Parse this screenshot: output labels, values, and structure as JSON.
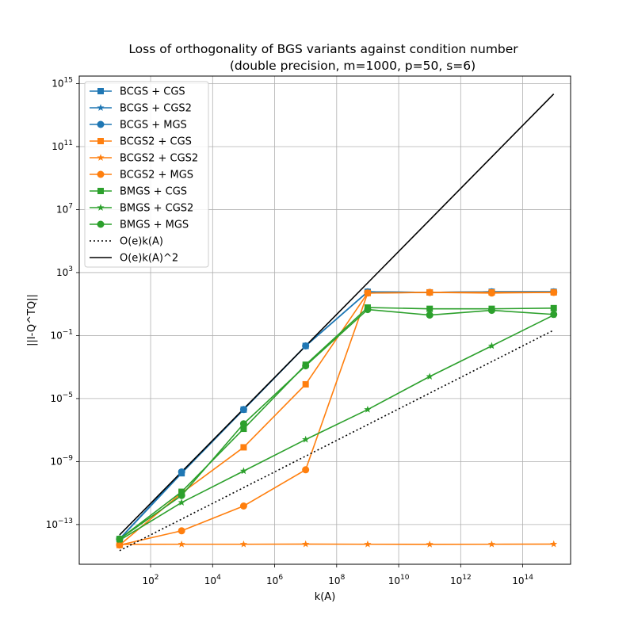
{
  "chart_data": {
    "type": "line",
    "title_line1": "Loss of orthogonality of BGS variants against condition number",
    "title_line2": "(double precision, m=1000, p=50, s=6)",
    "xlabel": "k(A)",
    "ylabel": "||I-Q^TQ||",
    "xscale": "log",
    "yscale": "log",
    "xlim": [
      0.5,
      3500000000000000.0
    ],
    "ylim": [
      3e-16,
      3000000000000000.0
    ],
    "grid": true,
    "legend_position": "top-left",
    "x": [
      10,
      1000,
      100000,
      10000000,
      1000000000,
      100000000000,
      10000000000000,
      1000000000000000
    ],
    "x_ticks": [
      {
        "value": 100,
        "base": "10",
        "exp": "2"
      },
      {
        "value": 10000,
        "base": "10",
        "exp": "4"
      },
      {
        "value": 1000000,
        "base": "10",
        "exp": "6"
      },
      {
        "value": 100000000,
        "base": "10",
        "exp": "8"
      },
      {
        "value": 10000000000,
        "base": "10",
        "exp": "10"
      },
      {
        "value": 1000000000000,
        "base": "10",
        "exp": "12"
      },
      {
        "value": 100000000000000,
        "base": "10",
        "exp": "14"
      }
    ],
    "y_ticks": [
      {
        "value": 1e-13,
        "base": "10",
        "exp": "−13"
      },
      {
        "value": 1e-09,
        "base": "10",
        "exp": "−9"
      },
      {
        "value": 1e-05,
        "base": "10",
        "exp": "−5"
      },
      {
        "value": 0.1,
        "base": "10",
        "exp": "−1"
      },
      {
        "value": 1000,
        "base": "10",
        "exp": "3"
      },
      {
        "value": 10000000,
        "base": "10",
        "exp": "7"
      },
      {
        "value": 100000000000,
        "base": "10",
        "exp": "11"
      },
      {
        "value": 1000000000000000.0,
        "base": "10",
        "exp": "15"
      }
    ],
    "series": [
      {
        "name": "BCGS + CGS",
        "color": "#1f77b4",
        "marker": "square",
        "dashed": false,
        "values": [
          1.2e-14,
          1.8e-10,
          2e-06,
          0.022,
          60,
          55,
          60,
          60
        ]
      },
      {
        "name": "BCGS + CGS2",
        "color": "#1f77b4",
        "marker": "star",
        "dashed": false,
        "values": [
          1.2e-14,
          2.2e-10,
          2e-06,
          0.022,
          60,
          55,
          60,
          60
        ]
      },
      {
        "name": "BCGS + MGS",
        "color": "#1f77b4",
        "marker": "circle",
        "dashed": false,
        "values": [
          1.2e-14,
          2.2e-10,
          2e-06,
          0.022,
          60,
          55,
          60,
          60
        ]
      },
      {
        "name": "BCGS2 + CGS",
        "color": "#ff7f0e",
        "marker": "square",
        "dashed": false,
        "values": [
          5e-15,
          1e-11,
          8e-09,
          8e-05,
          50,
          55,
          55,
          55
        ]
      },
      {
        "name": "BCGS2 + CGS2",
        "color": "#ff7f0e",
        "marker": "star",
        "dashed": false,
        "values": [
          5.5e-15,
          5.6e-15,
          5.6e-15,
          5.7e-15,
          5.6e-15,
          5.5e-15,
          5.6e-15,
          5.7e-15
        ]
      },
      {
        "name": "BCGS2 + MGS",
        "color": "#ff7f0e",
        "marker": "circle",
        "dashed": false,
        "values": [
          5e-15,
          4e-14,
          1.5e-12,
          3e-10,
          50,
          55,
          50,
          55
        ]
      },
      {
        "name": "BMGS + CGS",
        "color": "#2ca02c",
        "marker": "square",
        "dashed": false,
        "values": [
          1.2e-14,
          1.2e-11,
          1.2e-07,
          0.0014,
          6,
          5,
          5,
          5.5
        ]
      },
      {
        "name": "BMGS + CGS2",
        "color": "#2ca02c",
        "marker": "star",
        "dashed": false,
        "values": [
          1e-14,
          2.5e-12,
          2.5e-10,
          2.5e-08,
          2e-06,
          0.00025,
          0.022,
          2
        ]
      },
      {
        "name": "BMGS + MGS",
        "color": "#2ca02c",
        "marker": "circle",
        "dashed": false,
        "values": [
          1.2e-14,
          7e-12,
          2.5e-07,
          0.0012,
          4.5,
          2,
          4,
          2.2
        ]
      },
      {
        "name": "O(e)k(A)",
        "color": "#000000",
        "marker": "none",
        "dashed": true,
        "values": [
          2.2e-15,
          2.2e-13,
          2.2e-11,
          2.2e-09,
          2.2e-07,
          2.2e-05,
          0.0022,
          0.22
        ]
      },
      {
        "name": "O(e)k(A)^2",
        "color": "#000000",
        "marker": "none",
        "dashed": false,
        "values": [
          2.2e-14,
          2.2e-10,
          2.2e-06,
          0.022,
          220,
          2200000,
          22000000000,
          220000000000000
        ]
      }
    ]
  }
}
